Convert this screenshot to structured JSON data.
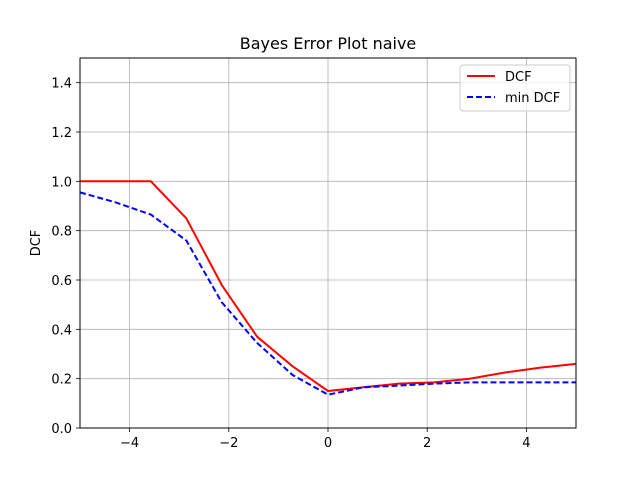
{
  "chart_data": {
    "type": "line",
    "title": "Bayes Error Plot naive",
    "xlabel": "",
    "ylabel": "DCF",
    "xlim": [
      -5,
      5
    ],
    "ylim": [
      0,
      1.5
    ],
    "xticks": [
      -4,
      -2,
      0,
      2,
      4
    ],
    "xtick_labels": [
      "−4",
      "−2",
      "0",
      "2",
      "4"
    ],
    "yticks": [
      0.0,
      0.2,
      0.4,
      0.6,
      0.8,
      1.0,
      1.2,
      1.4
    ],
    "ytick_labels": [
      "0.0",
      "0.2",
      "0.4",
      "0.6",
      "0.8",
      "1.0",
      "1.2",
      "1.4"
    ],
    "grid": true,
    "legend_position": "top-right",
    "x": [
      -5.0,
      -4.286,
      -3.571,
      -2.857,
      -2.143,
      -1.429,
      -0.714,
      0.0,
      0.714,
      1.429,
      2.143,
      2.857,
      3.571,
      4.286,
      5.0
    ],
    "series": [
      {
        "name": "DCF",
        "color": "#ff0000",
        "style": "solid",
        "values": [
          1.0,
          1.0,
          1.0,
          0.85,
          0.58,
          0.37,
          0.25,
          0.15,
          0.165,
          0.18,
          0.185,
          0.2,
          0.225,
          0.245,
          0.26
        ]
      },
      {
        "name": "min DCF",
        "color": "#0000ff",
        "style": "dashed",
        "values": [
          0.955,
          0.915,
          0.865,
          0.76,
          0.51,
          0.345,
          0.215,
          0.135,
          0.165,
          0.172,
          0.18,
          0.185,
          0.185,
          0.185,
          0.185
        ]
      }
    ]
  }
}
